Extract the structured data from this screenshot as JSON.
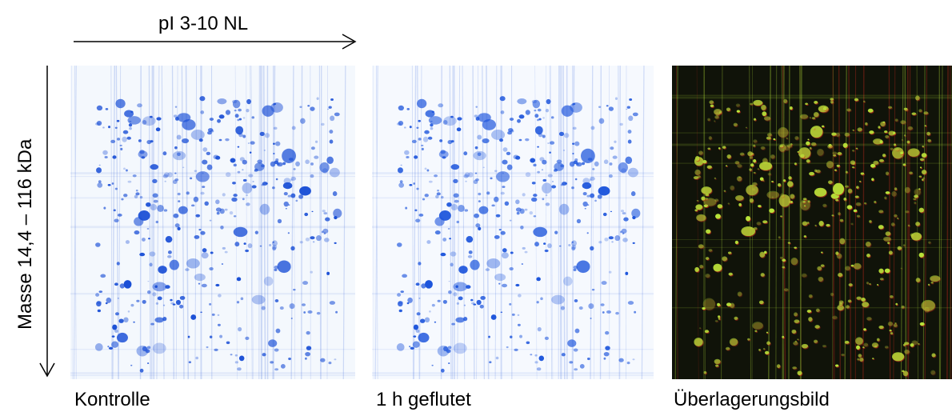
{
  "axes": {
    "x_label": "pI 3-10 NL",
    "y_label": "Masse 14,4 – 116 kDa"
  },
  "panels": [
    {
      "caption": "Kontrolle",
      "style": "coomassie",
      "background": "#f4f8fd",
      "spot_color": "#1a4fd6"
    },
    {
      "caption": "1 h geflutet",
      "style": "coomassie",
      "background": "#f6f9fe",
      "spot_color": "#1d55dc"
    },
    {
      "caption": "Überlagerungsbild",
      "style": "overlay",
      "background": "#101309",
      "spot_color": "#b8e63a",
      "secondary_color": "#d22a1e"
    }
  ]
}
